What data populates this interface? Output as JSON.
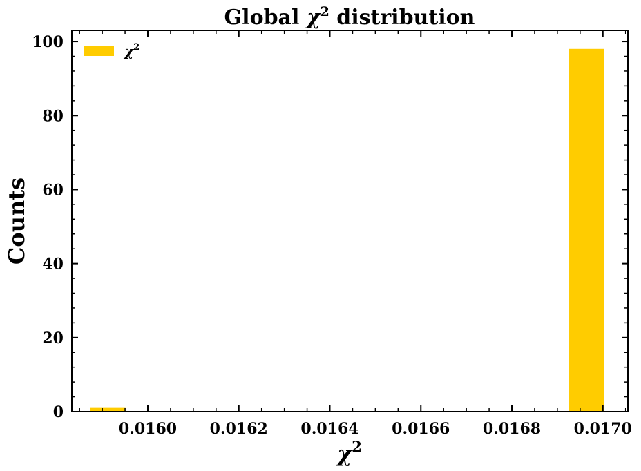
{
  "chart_data": {
    "type": "bar",
    "title": {
      "prefix": "Global ",
      "symbol": "χ",
      "sup": "2",
      "suffix": " distribution"
    },
    "xlabel": {
      "symbol": "χ",
      "sup": "2"
    },
    "ylabel": "Counts",
    "legend": {
      "symbol": "χ",
      "sup": "2",
      "position": "top-left",
      "color": "#FFCC00"
    },
    "bar_color": "#FFCC00",
    "bars": [
      {
        "x_start": 0.015874,
        "x_end": 0.015951,
        "value": 1
      },
      {
        "x_start": 0.016926,
        "x_end": 0.017002,
        "value": 98
      }
    ],
    "xlim": [
      0.015833,
      0.017055
    ],
    "ylim": [
      0,
      103
    ],
    "x_major_ticks": [
      0.016,
      0.0162,
      0.0164,
      0.0166,
      0.0168,
      0.017
    ],
    "x_tick_labels": [
      "0.0160",
      "0.0162",
      "0.0164",
      "0.0166",
      "0.0168",
      "0.0170"
    ],
    "x_minor_step": 5e-05,
    "y_major_ticks": [
      0,
      20,
      40,
      60,
      80,
      100
    ],
    "y_tick_labels": [
      "0",
      "20",
      "40",
      "60",
      "80",
      "100"
    ],
    "y_minor_step": 4,
    "grid": false
  }
}
